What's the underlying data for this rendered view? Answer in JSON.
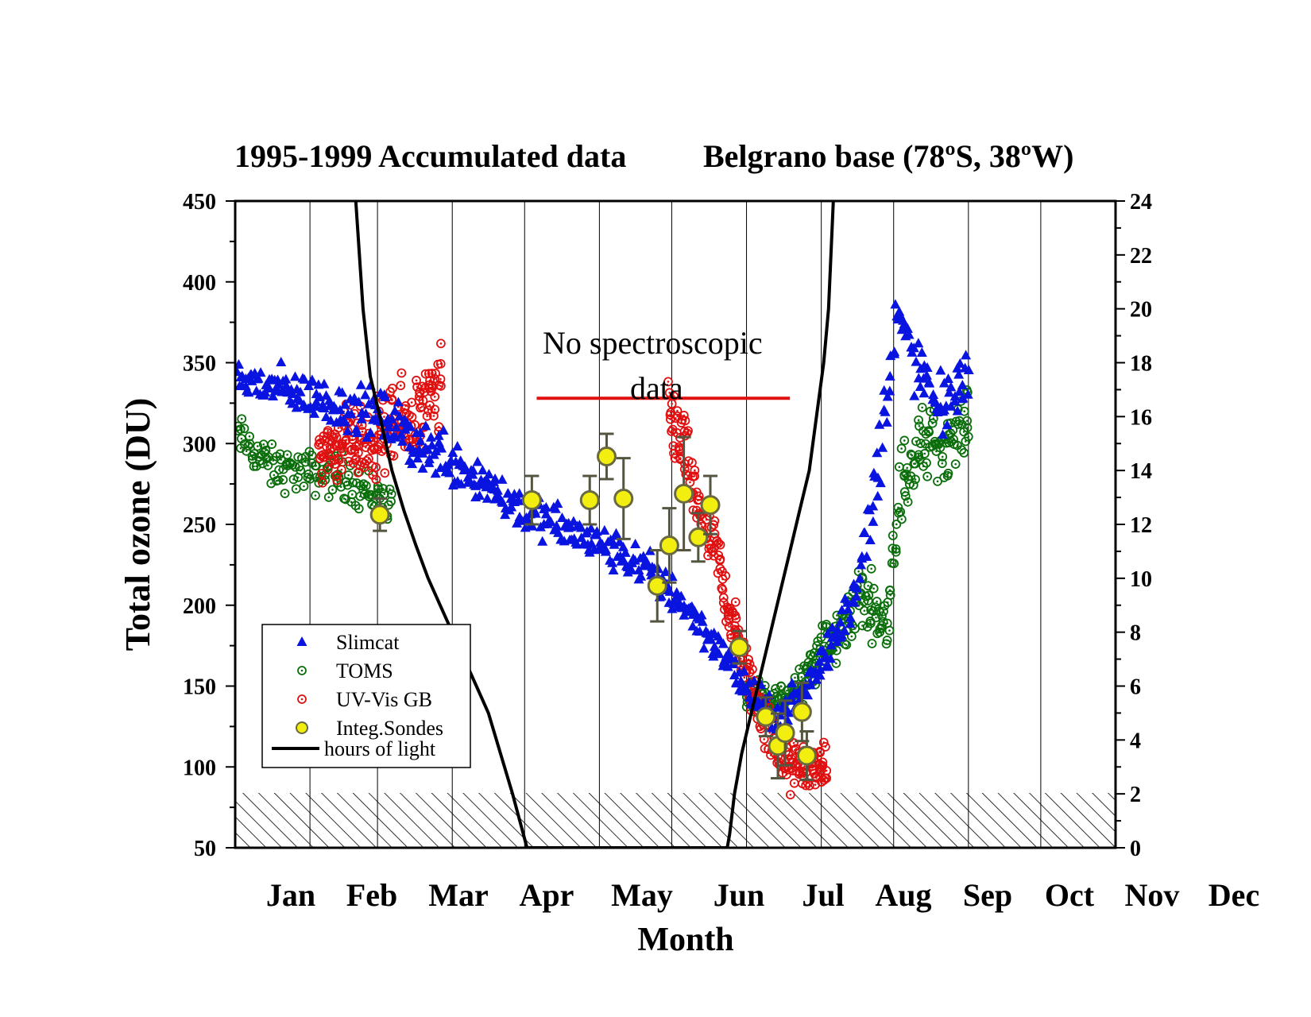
{
  "chart_data": {
    "type": "scatter",
    "title_left": "1995-1999 Accumulated data",
    "title_right": "Belgrano base (78ºS, 38ºW)",
    "xlabel": "Month",
    "ylabel": "Total ozone (DU)",
    "x_categories": [
      "Jan",
      "Feb",
      "Mar",
      "Apr",
      "May",
      "Jun",
      "Jul",
      "Aug",
      "Sep",
      "Oct",
      "Nov",
      "Dec"
    ],
    "ylim": [
      50,
      450
    ],
    "yticks": [
      50,
      100,
      150,
      200,
      250,
      300,
      350,
      400,
      450
    ],
    "y2lim": [
      0,
      24
    ],
    "y2ticks": [
      0,
      2,
      4,
      6,
      8,
      10,
      12,
      14,
      16,
      18,
      20,
      22,
      24
    ],
    "x_unit": "day of year",
    "xlim": [
      0,
      365
    ],
    "month_gridlines": [
      31,
      59,
      90,
      120,
      151,
      181,
      212,
      243,
      273,
      304,
      334
    ],
    "annotation": {
      "line1": "No spectroscopic",
      "line2": "data",
      "x_range": [
        125,
        230
      ],
      "y": 328,
      "color": "#e01010"
    },
    "hatched_below": 83,
    "legend": {
      "position": "lower-left",
      "entries": [
        {
          "label": "Slimcat",
          "marker": "triangle",
          "color": "#0a14e0"
        },
        {
          "label": "TOMS",
          "marker": "circle-dot",
          "color": "#0a6e0a"
        },
        {
          "label": "UV-Vis GB",
          "marker": "circle-dot",
          "color": "#e01010"
        },
        {
          "label": "Integ.Sondes",
          "marker": "filled-circle",
          "color": "#f2ee10"
        },
        {
          "label": "hours of light",
          "marker": "line",
          "color": "#000000"
        }
      ]
    },
    "series": [
      {
        "name": "Slimcat",
        "description": "Dense daily model values; anchor points of the trend used to place markers (day, DU, spread)",
        "anchors": [
          [
            1,
            340,
            15
          ],
          [
            15,
            335,
            14
          ],
          [
            30,
            330,
            14
          ],
          [
            45,
            322,
            15
          ],
          [
            60,
            318,
            16
          ],
          [
            75,
            300,
            18
          ],
          [
            90,
            290,
            18
          ],
          [
            105,
            275,
            16
          ],
          [
            120,
            258,
            14
          ],
          [
            135,
            248,
            14
          ],
          [
            150,
            238,
            13
          ],
          [
            165,
            228,
            13
          ],
          [
            180,
            210,
            14
          ],
          [
            192,
            190,
            12
          ],
          [
            202,
            170,
            11
          ],
          [
            212,
            148,
            12
          ],
          [
            222,
            130,
            12
          ],
          [
            232,
            140,
            12
          ],
          [
            242,
            160,
            14
          ],
          [
            252,
            190,
            16
          ],
          [
            260,
            225,
            18
          ],
          [
            268,
            300,
            30
          ],
          [
            274,
            380,
            15
          ],
          [
            282,
            350,
            20
          ],
          [
            292,
            320,
            22
          ],
          [
            304,
            345,
            15
          ]
        ]
      },
      {
        "name": "TOMS",
        "anchors": [
          [
            1,
            305,
            14
          ],
          [
            15,
            285,
            14
          ],
          [
            30,
            282,
            14
          ],
          [
            45,
            280,
            15
          ],
          [
            55,
            270,
            15
          ],
          [
            65,
            262,
            14
          ],
          [
            212,
            145,
            10
          ],
          [
            222,
            138,
            12
          ],
          [
            232,
            148,
            14
          ],
          [
            242,
            170,
            18
          ],
          [
            250,
            180,
            18
          ],
          [
            258,
            205,
            22
          ],
          [
            265,
            200,
            20
          ],
          [
            270,
            185,
            12
          ],
          [
            275,
            270,
            30
          ],
          [
            285,
            300,
            25
          ],
          [
            295,
            300,
            20
          ],
          [
            304,
            315,
            18
          ]
        ]
      },
      {
        "name": "UV-Vis GB",
        "anchors": [
          [
            35,
            295,
            20
          ],
          [
            45,
            300,
            22
          ],
          [
            55,
            300,
            25
          ],
          [
            65,
            310,
            25
          ],
          [
            75,
            315,
            28
          ],
          [
            85,
            330,
            30
          ],
          [
            180,
            320,
            30
          ],
          [
            185,
            300,
            25
          ],
          [
            190,
            270,
            25
          ],
          [
            195,
            245,
            22
          ],
          [
            200,
            230,
            20
          ],
          [
            205,
            195,
            18
          ],
          [
            210,
            170,
            18
          ],
          [
            215,
            145,
            18
          ],
          [
            222,
            120,
            18
          ],
          [
            230,
            100,
            18
          ],
          [
            238,
            100,
            15
          ],
          [
            245,
            100,
            12
          ]
        ]
      },
      {
        "name": "Integ.Sondes",
        "points": [
          {
            "x": 60,
            "y": 256,
            "err": 10
          },
          {
            "x": 123,
            "y": 265,
            "err": 15
          },
          {
            "x": 147,
            "y": 265,
            "err": 15
          },
          {
            "x": 154,
            "y": 292,
            "err": 14
          },
          {
            "x": 161,
            "y": 266,
            "err": 25
          },
          {
            "x": 175,
            "y": 212,
            "err": 22
          },
          {
            "x": 180,
            "y": 237,
            "err": 23
          },
          {
            "x": 186,
            "y": 269,
            "err": 35
          },
          {
            "x": 192,
            "y": 242,
            "err": 15
          },
          {
            "x": 197,
            "y": 262,
            "err": 18
          },
          {
            "x": 209,
            "y": 174,
            "err": 10
          },
          {
            "x": 220,
            "y": 131,
            "err": 12
          },
          {
            "x": 225,
            "y": 113,
            "err": 20
          },
          {
            "x": 228,
            "y": 121,
            "err": 20
          },
          {
            "x": 235,
            "y": 134,
            "err": 18
          },
          {
            "x": 237,
            "y": 107,
            "err": 15
          }
        ]
      },
      {
        "name": "hours of light",
        "axis": "right",
        "points": [
          [
            50,
            24
          ],
          [
            53,
            20
          ],
          [
            56,
            17.5
          ],
          [
            60,
            16
          ],
          [
            65,
            14
          ],
          [
            70,
            12.5
          ],
          [
            75,
            11.2
          ],
          [
            80,
            10
          ],
          [
            85,
            9
          ],
          [
            90,
            8
          ],
          [
            95,
            7
          ],
          [
            100,
            6
          ],
          [
            105,
            5
          ],
          [
            110,
            3.5
          ],
          [
            115,
            2
          ],
          [
            118,
            1
          ],
          [
            121,
            0
          ],
          [
            204,
            0
          ],
          [
            205,
            0.5
          ],
          [
            207,
            2
          ],
          [
            210,
            3.5
          ],
          [
            214,
            5
          ],
          [
            218,
            6.5
          ],
          [
            222,
            8
          ],
          [
            226,
            9.5
          ],
          [
            230,
            11
          ],
          [
            234,
            12.5
          ],
          [
            238,
            14
          ],
          [
            241,
            16
          ],
          [
            244,
            18
          ],
          [
            246,
            20
          ],
          [
            247,
            22
          ],
          [
            248,
            24
          ]
        ]
      }
    ]
  }
}
